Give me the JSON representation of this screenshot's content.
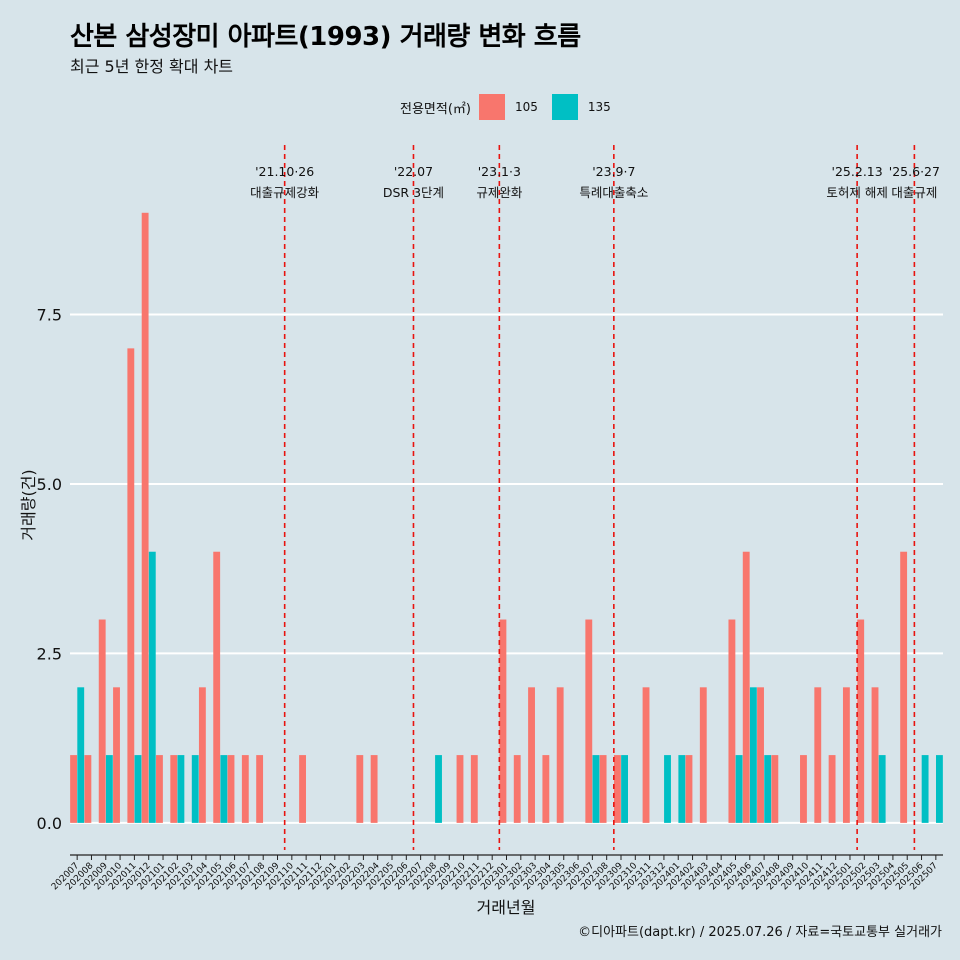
{
  "header": {
    "title": "산본 삼성장미 아파트(1993) 거래량 변화 흐름",
    "subtitle": "최근 5년 한정 확대 차트"
  },
  "legend": {
    "title": "전용면적(㎡)",
    "items": [
      {
        "label": "105",
        "color": "#f8766d"
      },
      {
        "label": "135",
        "color": "#00bfc4"
      }
    ]
  },
  "caption": "©디아파트(dapt.kr) / 2025.07.26 / 자료=국토교통부 실거래가",
  "chart_data": {
    "type": "bar",
    "title": "산본 삼성장미 아파트(1993) 거래량 변화 흐름",
    "xlabel": "거래년월",
    "ylabel": "거래량(건)",
    "ylim": [
      -0.4,
      10.0
    ],
    "yticks": [
      0.0,
      2.5,
      5.0,
      7.5
    ],
    "ytick_labels": [
      "0.0",
      "2.5",
      "5.0",
      "7.5"
    ],
    "categories": [
      "202007",
      "202008",
      "202009",
      "202010",
      "202011",
      "202012",
      "202101",
      "202102",
      "202103",
      "202104",
      "202105",
      "202106",
      "202107",
      "202108",
      "202109",
      "202110",
      "202111",
      "202112",
      "202201",
      "202202",
      "202203",
      "202204",
      "202205",
      "202206",
      "202207",
      "202208",
      "202209",
      "202210",
      "202211",
      "202212",
      "202301",
      "202302",
      "202303",
      "202304",
      "202305",
      "202306",
      "202307",
      "202308",
      "202309",
      "202310",
      "202311",
      "202312",
      "202401",
      "202402",
      "202403",
      "202404",
      "202405",
      "202406",
      "202407",
      "202408",
      "202409",
      "202410",
      "202411",
      "202412",
      "202501",
      "202502",
      "202503",
      "202504",
      "202505",
      "202506",
      "202507"
    ],
    "series": [
      {
        "name": "105",
        "color": "#f8766d",
        "values": [
          1,
          1,
          3,
          2,
          7,
          9,
          1,
          1,
          0,
          2,
          4,
          1,
          1,
          1,
          0,
          0,
          1,
          0,
          0,
          0,
          1,
          1,
          0,
          0,
          0,
          0,
          0,
          1,
          1,
          0,
          3,
          1,
          2,
          1,
          2,
          0,
          3,
          1,
          1,
          0,
          2,
          0,
          0,
          1,
          2,
          0,
          3,
          4,
          2,
          1,
          0,
          1,
          2,
          1,
          2,
          3,
          2,
          0,
          4,
          0,
          0
        ]
      },
      {
        "name": "135",
        "color": "#00bfc4",
        "values": [
          2,
          0,
          1,
          0,
          1,
          4,
          0,
          1,
          1,
          0,
          1,
          0,
          0,
          0,
          0,
          0,
          0,
          0,
          0,
          0,
          0,
          0,
          0,
          0,
          0,
          1,
          0,
          0,
          0,
          0,
          0,
          0,
          0,
          0,
          0,
          0,
          1,
          0,
          1,
          0,
          0,
          1,
          1,
          0,
          0,
          0,
          1,
          2,
          1,
          0,
          0,
          0,
          0,
          0,
          0,
          0,
          1,
          0,
          0,
          1,
          1
        ]
      }
    ],
    "vlines": [
      {
        "pos": 15.0,
        "label1": "'21.10·26",
        "label2": "대출규제강화"
      },
      {
        "pos": 24.0,
        "label1": "'22.07",
        "label2": "DSR 3단계"
      },
      {
        "pos": 30.0,
        "label1": "'23.1·3",
        "label2": "규제완화"
      },
      {
        "pos": 38.0,
        "label1": "'23.9·7",
        "label2": "특례대출축소"
      },
      {
        "pos": 55.0,
        "label1": "'25.2.13",
        "label2": "토허제 해제"
      },
      {
        "pos": 59.0,
        "label1": "'25.6·27",
        "label2": "대출규제"
      }
    ]
  }
}
